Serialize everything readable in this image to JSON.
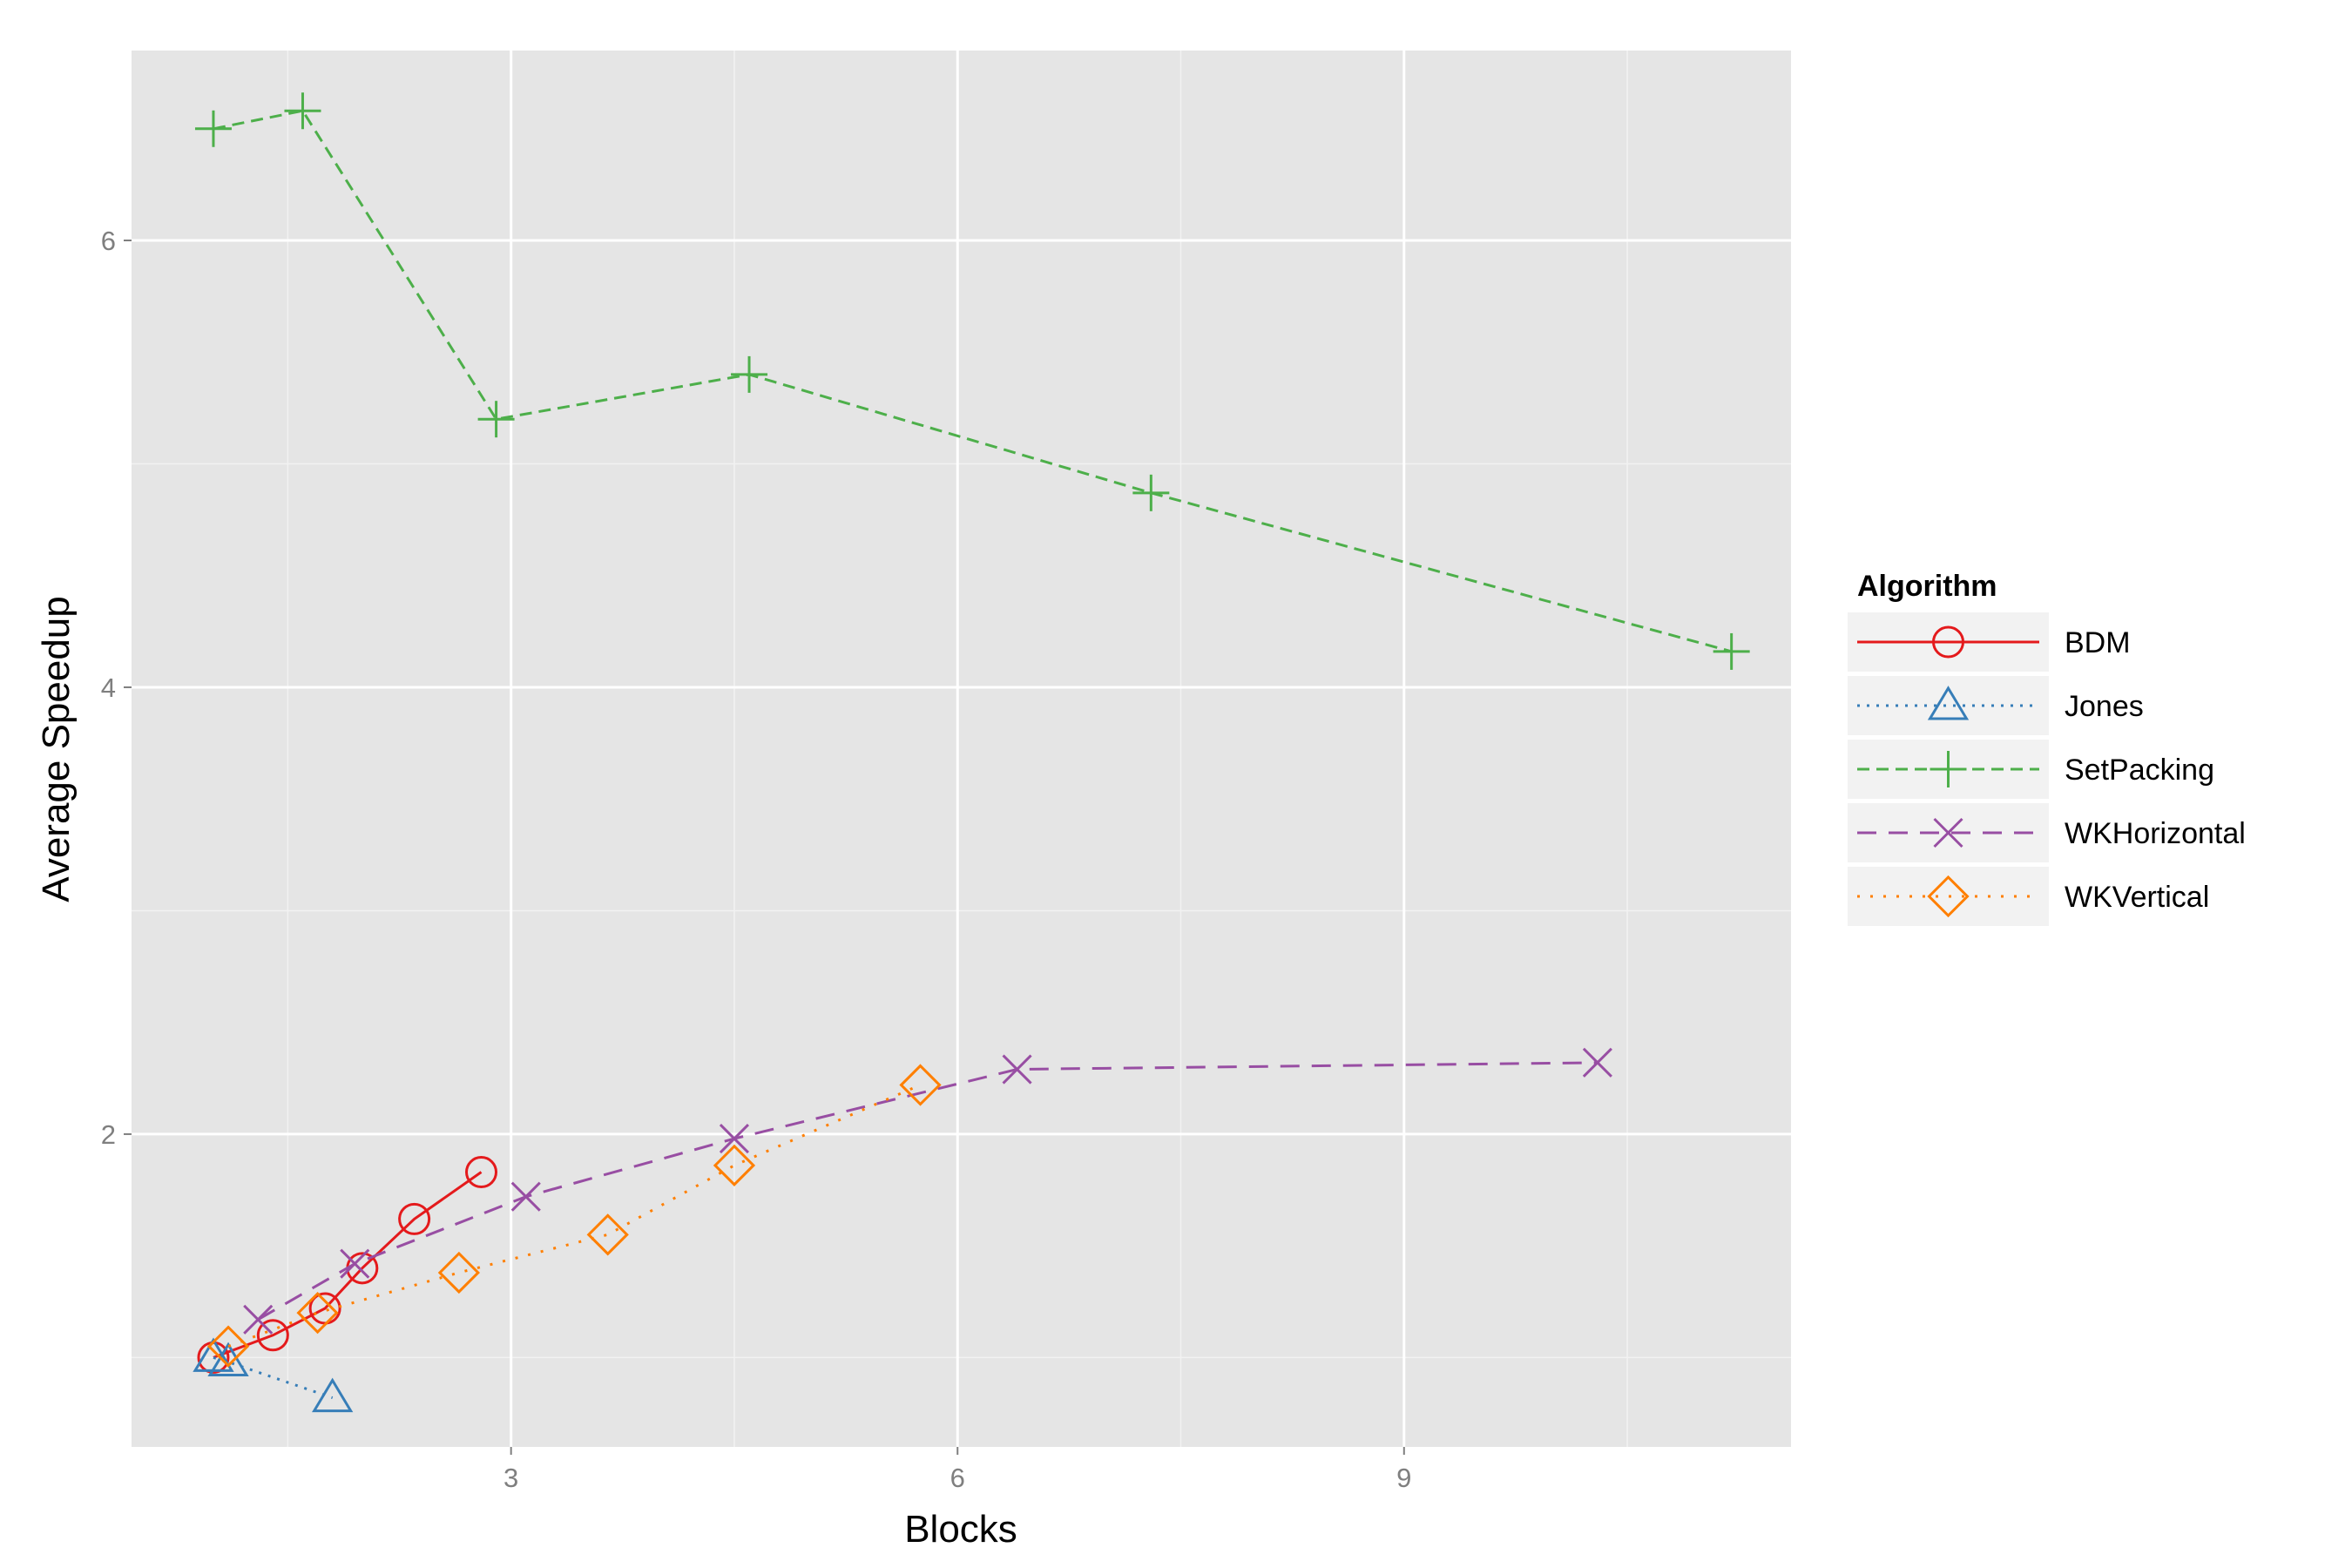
{
  "chart_data": {
    "type": "line",
    "title": "",
    "xlabel": "Blocks",
    "ylabel": "Average Speedup",
    "xlim": [
      0.45,
      11.6
    ],
    "ylim": [
      0.6,
      6.85
    ],
    "xticks": [
      3,
      6,
      9
    ],
    "yticks": [
      2,
      4,
      6
    ],
    "x_minor_gridlines": [
      1.5,
      4.5,
      7.5,
      10.5
    ],
    "y_minor_gridlines": [
      1,
      3,
      5
    ],
    "grid": true,
    "background": "#e5e5e5",
    "legend": {
      "title": "Algorithm",
      "placement": "right"
    },
    "series": [
      {
        "name": "BDM",
        "color": "#e41a1c",
        "line": "solid",
        "marker": "circle",
        "x": [
          1.0,
          1.4,
          1.75,
          2.0,
          2.35,
          2.8
        ],
        "y": [
          1.0,
          1.1,
          1.22,
          1.4,
          1.62,
          1.83
        ]
      },
      {
        "name": "Jones",
        "color": "#377eb8",
        "line": "dotted",
        "marker": "triangle",
        "x": [
          1.0,
          1.1,
          1.8
        ],
        "y": [
          1.0,
          0.98,
          0.82
        ]
      },
      {
        "name": "SetPacking",
        "color": "#4daf4a",
        "line": "dashed",
        "marker": "plus",
        "x": [
          1.0,
          1.6,
          2.9,
          4.6,
          7.3,
          11.2
        ],
        "y": [
          6.5,
          6.58,
          5.2,
          5.4,
          4.87,
          4.16
        ]
      },
      {
        "name": "WKHorizontal",
        "color": "#984ea3",
        "line": "longdash",
        "marker": "x",
        "x": [
          1.3,
          1.95,
          3.1,
          4.5,
          6.4,
          10.3
        ],
        "y": [
          1.17,
          1.42,
          1.72,
          1.98,
          2.29,
          2.32
        ]
      },
      {
        "name": "WKVertical",
        "color": "#ff7f00",
        "line": "dotted-wide",
        "marker": "diamond",
        "x": [
          1.1,
          1.7,
          2.65,
          3.65,
          4.5,
          5.75
        ],
        "y": [
          1.05,
          1.2,
          1.38,
          1.55,
          1.86,
          2.22
        ]
      }
    ]
  }
}
